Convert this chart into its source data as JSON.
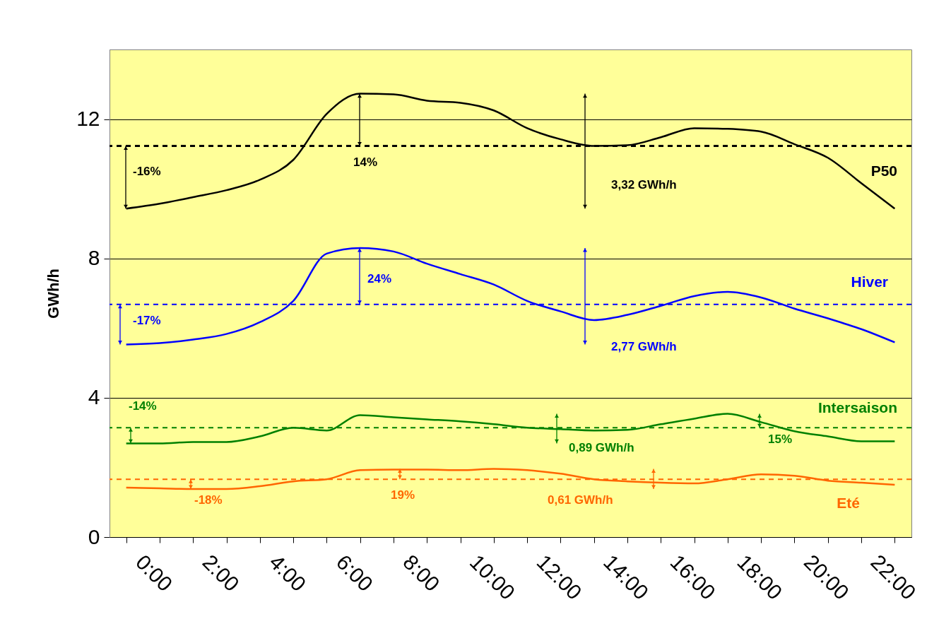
{
  "chart_data": {
    "type": "line",
    "ylabel": "GWh/h",
    "categories": [
      "0:00",
      null,
      "2:00",
      null,
      "4:00",
      null,
      "6:00",
      null,
      "8:00",
      null,
      "10:00",
      null,
      "12:00",
      null,
      "14:00",
      null,
      "16:00",
      null,
      "18:00",
      null,
      "20:00",
      null,
      "22:00",
      null
    ],
    "ylim": [
      0,
      14
    ],
    "yticks": [
      0,
      4,
      8,
      12
    ],
    "grid": "y",
    "legend": false,
    "series": [
      {
        "name": "P50",
        "color": "#000000",
        "values": [
          9.43,
          9.57,
          9.76,
          9.96,
          10.26,
          10.83,
          12.15,
          12.73,
          12.71,
          12.53,
          12.47,
          12.25,
          11.74,
          11.42,
          11.23,
          11.25,
          11.48,
          11.74,
          11.72,
          11.64,
          11.28,
          10.89,
          10.16,
          9.43
        ]
      },
      {
        "name": "Hiver",
        "color": "#0000ff",
        "values": [
          5.53,
          5.57,
          5.67,
          5.83,
          6.17,
          6.78,
          8.14,
          8.3,
          8.2,
          7.85,
          7.55,
          7.25,
          6.78,
          6.48,
          6.23,
          6.38,
          6.64,
          6.92,
          7.04,
          6.88,
          6.56,
          6.28,
          5.97,
          5.59
        ]
      },
      {
        "name": "Intersaison",
        "color": "#008000",
        "values": [
          2.69,
          2.69,
          2.73,
          2.73,
          2.89,
          3.14,
          3.06,
          3.5,
          3.44,
          3.38,
          3.32,
          3.24,
          3.14,
          3.1,
          3.06,
          3.08,
          3.24,
          3.4,
          3.54,
          3.3,
          3.04,
          2.89,
          2.75,
          2.75
        ]
      },
      {
        "name": "Eté",
        "color": "#ff6600",
        "values": [
          1.42,
          1.4,
          1.38,
          1.38,
          1.46,
          1.6,
          1.66,
          1.92,
          1.94,
          1.94,
          1.92,
          1.96,
          1.92,
          1.82,
          1.66,
          1.6,
          1.56,
          1.54,
          1.66,
          1.8,
          1.76,
          1.62,
          1.56,
          1.5
        ]
      }
    ],
    "ref_lines": [
      {
        "axis": "y",
        "value": 11.23,
        "color": "#000000",
        "line_style": "dashed"
      },
      {
        "axis": "y",
        "value": 6.68,
        "color": "#0000ff",
        "line_style": "dashed"
      },
      {
        "axis": "y",
        "value": 3.14,
        "color": "#008000",
        "line_style": "dashed"
      },
      {
        "axis": "y",
        "value": 1.66,
        "color": "#ff6600",
        "line_style": "dashed"
      }
    ],
    "annotations": [
      "-16%",
      "14%",
      "3,32 GWh/h",
      "-17%",
      "24%",
      "2,77 GWh/h",
      "-14%",
      "15%",
      "0,89 GWh/h",
      "-18%",
      "19%",
      "0,61 GWh/h"
    ]
  }
}
